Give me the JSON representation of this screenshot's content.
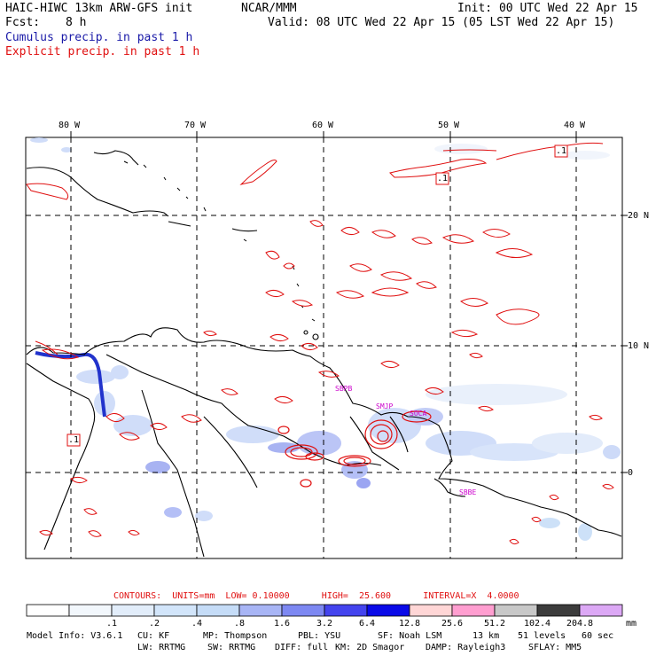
{
  "header": {
    "model": "HAIC-HIWC 13km ARW-GFS init",
    "org": "NCAR/MMM",
    "init": "Init: 00 UTC Wed 22 Apr 15",
    "fcst_label": "Fcst:",
    "fcst_value": "8 h",
    "valid": "Valid: 08 UTC Wed 22 Apr 15 (05 LST Wed 22 Apr 15)",
    "cumulus": "Cumulus precip. in past 1 h",
    "explicit": "Explicit precip. in past 1 h"
  },
  "map": {
    "lon_labels": [
      "80 W",
      "70 W",
      "60 W",
      "50 W",
      "40 W"
    ],
    "lat_labels": [
      "20 N",
      "10 N",
      "0"
    ],
    "contour_label": ".1",
    "stations": [
      "SBPB",
      "SMJP",
      "SOCA",
      "SBBE"
    ],
    "colors": {
      "coast": "#000000",
      "contour": "#e01010",
      "station": "#cc00cc",
      "grid": "#000000"
    }
  },
  "contours_line": "CONTOURS:  UNITS=mm  LOW= 0.10000      HIGH=  25.600      INTERVAL=X  4.0000",
  "colorbar": {
    "labels": [
      ".1",
      ".2",
      ".4",
      ".8",
      "1.6",
      "3.2",
      "6.4",
      "12.8",
      "25.6",
      "51.2",
      "102.4",
      "204.8"
    ],
    "unit": "mm",
    "colors": [
      "#ffffff",
      "#f2f7fc",
      "#e2edfa",
      "#d2e5fa",
      "#c5dcf7",
      "#a8b5f5",
      "#7d88f2",
      "#4444ee",
      "#0a0ae8",
      "#ffd6d6",
      "#ff9ed0",
      "#c8c8c8",
      "#3c3c3c",
      "#dca8f5"
    ]
  },
  "footer": {
    "line1": [
      "Model Info: V3.6.1",
      "CU: KF",
      "MP: Thompson",
      "PBL: YSU",
      "SF: Noah LSM",
      "13 km",
      "51 levels",
      "60 sec"
    ],
    "line2": [
      "LW: RRTMG",
      "SW: RRTMG",
      "DIFF: full",
      "KM: 2D Smagor",
      "DAMP: Rayleigh3",
      "SFLAY: MM5"
    ]
  }
}
